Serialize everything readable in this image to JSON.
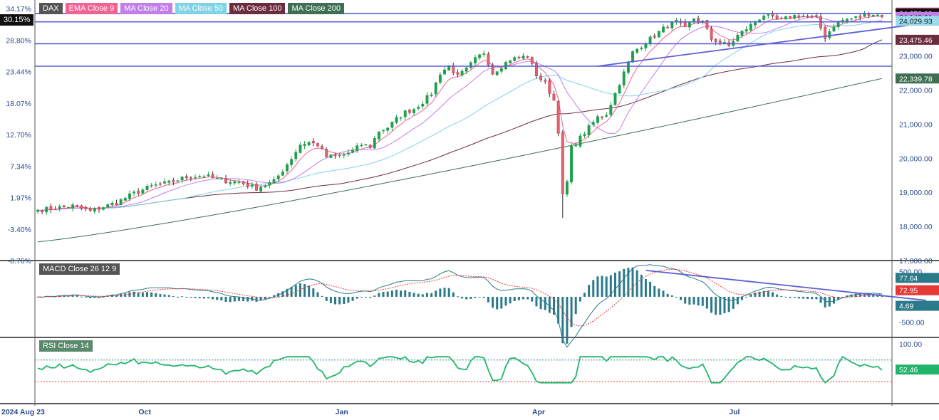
{
  "chart_data": {
    "type": "candlestick",
    "symbol": "DAX",
    "price_panel": {
      "legend": [
        {
          "label": "DAX",
          "color": "#555555"
        },
        {
          "label": "EMA Close 9",
          "color": "#f06292"
        },
        {
          "label": "MA Close 20",
          "color": "#c27ee8"
        },
        {
          "label": "MA Close 50",
          "color": "#7fd3e8"
        },
        {
          "label": "MA Close 100",
          "color": "#6b2c3e"
        },
        {
          "label": "MA Close 200",
          "color": "#3f6f52"
        }
      ],
      "left_axis_ticks": [
        "34.17%",
        "28.80%",
        "23.44%",
        "18.07%",
        "12.70%",
        "7.34%",
        "1.97%",
        "-3.40%",
        "-8.76%"
      ],
      "current_percent": "30.15%",
      "right_axis_ticks": [
        "24,000.00",
        "23,000.00",
        "22,000.00",
        "21,000.00",
        "20,000.00",
        "19,000.00",
        "18,000.00",
        "17,000.00"
      ],
      "ylim": [
        17000,
        24600
      ],
      "price_labels": [
        {
          "text": "24,273.45",
          "value": 24273.45,
          "color": "#f06292"
        },
        {
          "text": "24,250.09",
          "value": 24250.09,
          "color": "#111111"
        },
        {
          "text": "24,143.01",
          "value": 24143.01,
          "color": "#c27ee8"
        },
        {
          "text": "24,029.93",
          "value": 24029.93,
          "color": "#9bdcec"
        },
        {
          "text": "23,475.46",
          "value": 23475.46,
          "color": "#6b2c3e"
        },
        {
          "text": "22,339.78",
          "value": 22339.78,
          "color": "#3f6f52"
        }
      ],
      "horizontal_levels": [
        24250,
        24000,
        23360,
        22700
      ]
    },
    "macd_panel": {
      "legend": "MACD Close 26 12 9",
      "right_axis_ticks": [
        "500.00",
        "-500.00"
      ],
      "ylim": [
        -800,
        700
      ],
      "value_labels": [
        {
          "text": "77.64",
          "value": 77.64,
          "color": "#2a7a8a"
        },
        {
          "text": "72.95",
          "value": 72.95,
          "color": "#e53935"
        },
        {
          "text": "4.69",
          "value": 4.69,
          "color": "#2a7a8a"
        }
      ]
    },
    "rsi_panel": {
      "legend": "RSI Close 14",
      "right_axis_ticks": [
        "100.00"
      ],
      "ylim": [
        0,
        100
      ],
      "value_labels": [
        {
          "text": "52.46",
          "value": 52.46,
          "color": "#21b56c"
        }
      ]
    },
    "x_axis_ticks": [
      "2024 Aug 23",
      "Oct",
      "Jan",
      "Apr",
      "Jul"
    ],
    "colors": {
      "up": "#21a04c",
      "down": "#e2626e",
      "level": "#5b5fd6",
      "macd": "#2a7a8a",
      "signal": "#e53935",
      "rsi": "#21b56c"
    },
    "anchors": [
      [
        0,
        18480
      ],
      [
        8,
        18600
      ],
      [
        12,
        18450
      ],
      [
        18,
        18700
      ],
      [
        22,
        18970
      ],
      [
        26,
        19180
      ],
      [
        30,
        19280
      ],
      [
        34,
        19450
      ],
      [
        38,
        19490
      ],
      [
        42,
        19350
      ],
      [
        46,
        19300
      ],
      [
        50,
        19120
      ],
      [
        54,
        19320
      ],
      [
        56,
        19650
      ],
      [
        58,
        20000
      ],
      [
        60,
        20400
      ],
      [
        62,
        20470
      ],
      [
        64,
        20390
      ],
      [
        66,
        20050
      ],
      [
        68,
        20050
      ],
      [
        70,
        20100
      ],
      [
        72,
        20220
      ],
      [
        74,
        20400
      ],
      [
        76,
        20350
      ],
      [
        78,
        20800
      ],
      [
        80,
        20900
      ],
      [
        82,
        21150
      ],
      [
        84,
        21350
      ],
      [
        86,
        21450
      ],
      [
        88,
        21650
      ],
      [
        90,
        21900
      ],
      [
        92,
        22500
      ],
      [
        94,
        22700
      ],
      [
        96,
        22400
      ],
      [
        98,
        22600
      ],
      [
        100,
        22900
      ],
      [
        102,
        23100
      ],
      [
        104,
        22500
      ],
      [
        106,
        22700
      ],
      [
        108,
        22900
      ],
      [
        110,
        22950
      ],
      [
        112,
        23000
      ],
      [
        114,
        22450
      ],
      [
        116,
        22200
      ],
      [
        118,
        21700
      ],
      [
        119,
        20800
      ],
      [
        120,
        18900
      ],
      [
        121,
        19300
      ],
      [
        122,
        20300
      ],
      [
        124,
        20600
      ],
      [
        126,
        20900
      ],
      [
        128,
        21200
      ],
      [
        130,
        21300
      ],
      [
        132,
        21900
      ],
      [
        134,
        22500
      ],
      [
        136,
        23100
      ],
      [
        138,
        23300
      ],
      [
        140,
        23500
      ],
      [
        142,
        23700
      ],
      [
        144,
        23900
      ],
      [
        146,
        24000
      ],
      [
        148,
        23800
      ],
      [
        150,
        24100
      ],
      [
        152,
        24000
      ],
      [
        154,
        23500
      ],
      [
        156,
        23400
      ],
      [
        158,
        23300
      ],
      [
        160,
        23600
      ],
      [
        162,
        23800
      ],
      [
        164,
        24000
      ],
      [
        166,
        24200
      ],
      [
        168,
        24100
      ],
      [
        170,
        24050
      ],
      [
        172,
        24150
      ],
      [
        174,
        24200
      ],
      [
        176,
        24150
      ],
      [
        178,
        24100
      ],
      [
        180,
        23550
      ],
      [
        182,
        23900
      ],
      [
        184,
        24050
      ],
      [
        186,
        24100
      ],
      [
        188,
        24150
      ],
      [
        190,
        24250
      ],
      [
        192,
        24200
      ],
      [
        193,
        24150
      ]
    ]
  }
}
